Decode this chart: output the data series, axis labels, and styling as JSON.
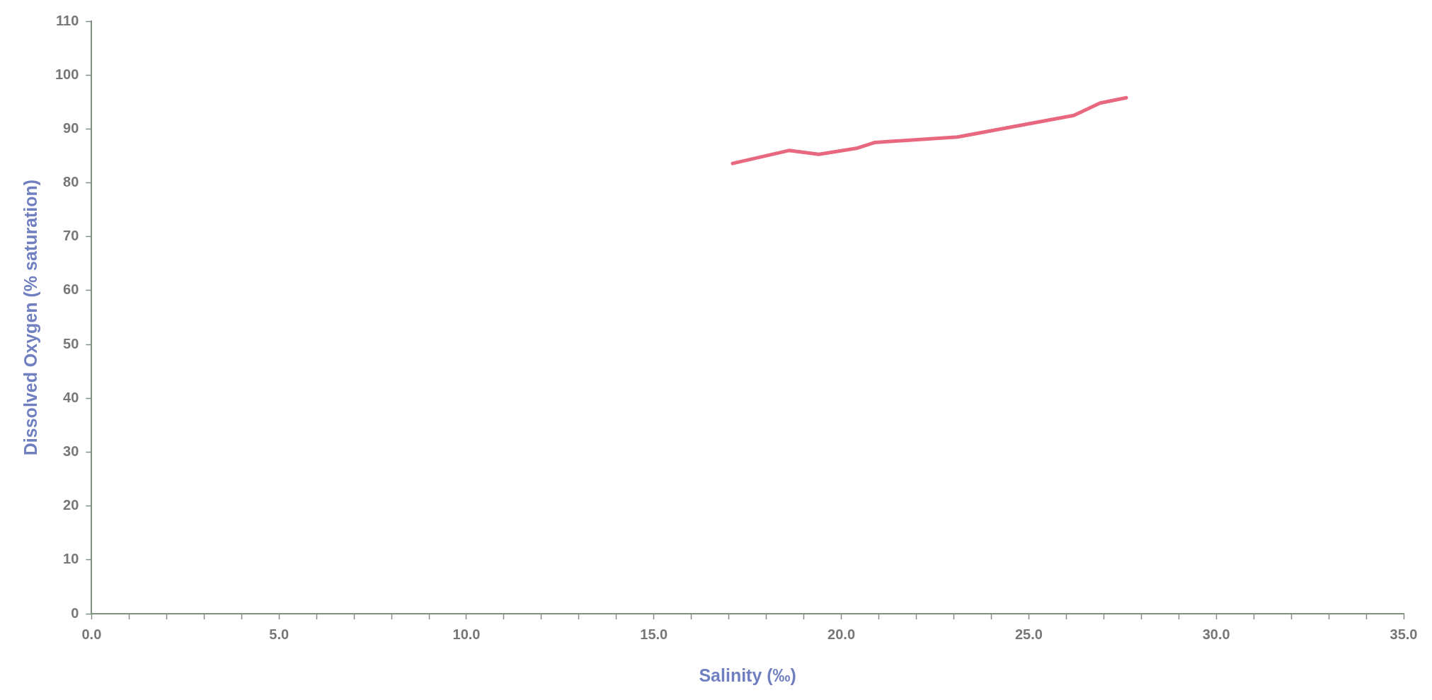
{
  "chart_data": {
    "type": "line",
    "xlabel": "Salinity (‰)",
    "ylabel": "Dissolved Oxygen (% saturation)",
    "x": [
      17.1,
      18.6,
      19.4,
      20.4,
      20.9,
      23.1,
      26.2,
      26.9,
      27.6
    ],
    "series": [
      {
        "color": "#e8697f",
        "values": [
          83.6,
          86.0,
          85.3,
          86.4,
          87.5,
          88.5,
          92.5,
          94.8,
          95.8
        ]
      }
    ],
    "xlim": [
      0,
      35
    ],
    "ylim": [
      0,
      110
    ],
    "xticks": [
      {
        "value": 0,
        "label": "0.0"
      },
      {
        "value": 1,
        "label": null
      },
      {
        "value": 2,
        "label": null
      },
      {
        "value": 3,
        "label": null
      },
      {
        "value": 4,
        "label": null
      },
      {
        "value": 5,
        "label": "5.0"
      },
      {
        "value": 6,
        "label": null
      },
      {
        "value": 7,
        "label": null
      },
      {
        "value": 8,
        "label": null
      },
      {
        "value": 9,
        "label": null
      },
      {
        "value": 10,
        "label": "10.0"
      },
      {
        "value": 11,
        "label": null
      },
      {
        "value": 12,
        "label": null
      },
      {
        "value": 13,
        "label": null
      },
      {
        "value": 14,
        "label": null
      },
      {
        "value": 15,
        "label": "15.0"
      },
      {
        "value": 16,
        "label": null
      },
      {
        "value": 17,
        "label": null
      },
      {
        "value": 18,
        "label": null
      },
      {
        "value": 19,
        "label": null
      },
      {
        "value": 20,
        "label": "20.0"
      },
      {
        "value": 21,
        "label": null
      },
      {
        "value": 22,
        "label": null
      },
      {
        "value": 23,
        "label": null
      },
      {
        "value": 24,
        "label": null
      },
      {
        "value": 25,
        "label": "25.0"
      },
      {
        "value": 26,
        "label": null
      },
      {
        "value": 27,
        "label": null
      },
      {
        "value": 28,
        "label": null
      },
      {
        "value": 29,
        "label": null
      },
      {
        "value": 30,
        "label": "30.0"
      },
      {
        "value": 31,
        "label": null
      },
      {
        "value": 32,
        "label": null
      },
      {
        "value": 33,
        "label": null
      },
      {
        "value": 34,
        "label": null
      },
      {
        "value": 35,
        "label": "35.0"
      }
    ],
    "yticks": [
      0,
      10,
      20,
      30,
      40,
      50,
      60,
      70,
      80,
      90,
      100,
      110
    ],
    "grid": false,
    "marker": "none",
    "line_style": "solid"
  }
}
